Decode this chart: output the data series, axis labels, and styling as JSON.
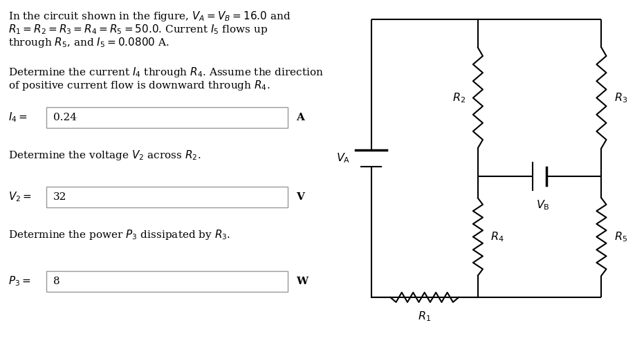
{
  "bg_color": "#ffffff",
  "text_color": "#000000",
  "line_color": "#000000",
  "title_line1": "In the circuit shown in the figure, $V_A = V_B = 16.0$ and",
  "title_line2": "$R_1 = R_2 = R_3 = R_4 = R_5 = 50.0$. Current $I_5$ flows up",
  "title_line3": "through $R_5$, and $I_5 = 0.0800$ A.",
  "q1_line1": "Determine the current $I_4$ through $R_4$. Assume the direction",
  "q1_line2": "of positive current flow is downward through $R_4$.",
  "q1_label": "$I_4 =$",
  "q1_value": "0.24",
  "q1_unit": "A",
  "q2_text": "Determine the voltage $V_2$ across $R_2$.",
  "q2_label": "$V_2 =$",
  "q2_value": "32",
  "q2_unit": "V",
  "q3_text": "Determine the power $P_3$ dissipated by $R_3$.",
  "q3_label": "$P_3 =$",
  "q3_value": "8",
  "q3_unit": "W",
  "fs": 11.0,
  "fs_circuit": 11.5
}
